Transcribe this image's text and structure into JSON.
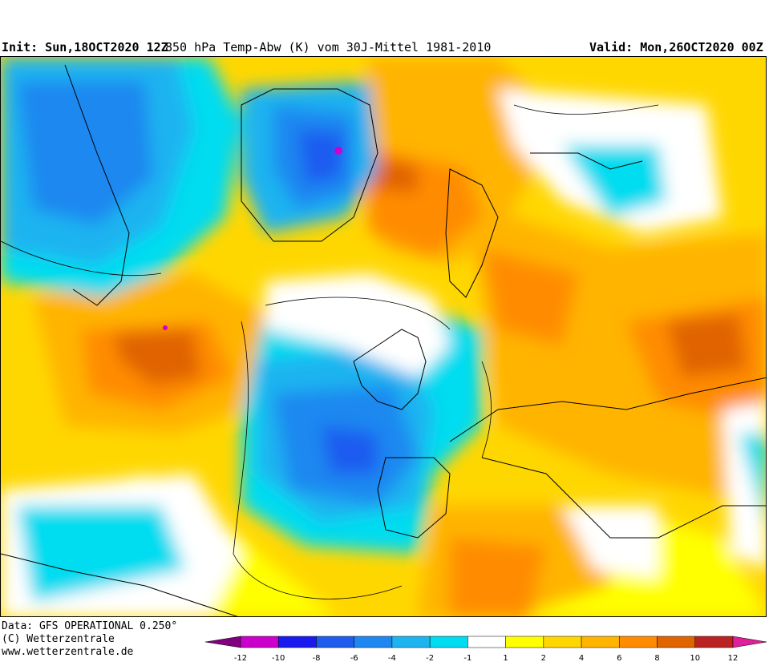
{
  "header": {
    "init": "Init: Sun,18OCT2020 12Z",
    "title": "850 hPa Temp-Abw (K) vom 30J-Mittel 1981-2010",
    "valid": "Valid: Mon,26OCT2020 00Z"
  },
  "footer": {
    "data_source": "Data: GFS OPERATIONAL 0.250°",
    "copyright": "(C) Wetterzentrale",
    "url": "www.wetterzentrale.de"
  },
  "legend": {
    "ticks": [
      "-12",
      "-10",
      "-8",
      "-6",
      "-4",
      "-2",
      "-1",
      "1",
      "2",
      "4",
      "6",
      "8",
      "10",
      "12"
    ],
    "colors": [
      "#cc00cc",
      "#1a1aee",
      "#1e5cf0",
      "#1e88f0",
      "#1eb4f0",
      "#00dcf0",
      "#ffffff",
      "#ffff00",
      "#ffd700",
      "#ffb400",
      "#ff8c00",
      "#e06400",
      "#bb2222"
    ],
    "low_arrow_color": "#800080",
    "high_arrow_color": "#e0209a"
  }
}
